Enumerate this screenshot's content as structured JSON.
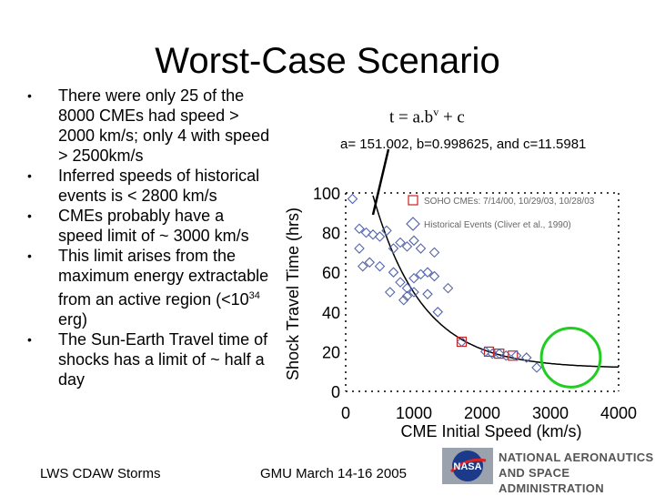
{
  "slide": {
    "title": "Worst-Case Scenario",
    "bullets": [
      "There were only 25 of the 8000 CMEs had speed > 2000 km/s; only 4 with  speed > 2500km/s",
      "Inferred speeds of historical events is < 2800 km/s",
      "CMEs probably have a speed limit of ~ 3000 km/s",
      "This limit arises from the maximum energy extractable from an active region (<10",
      "The Sun-Earth Travel time of shocks has a limit of ~ half a day"
    ],
    "bullet4_sup": "34",
    "bullet4_tail": " erg)",
    "formula_lhs": "t = a.b",
    "formula_sup": "v",
    "formula_rhs": " + c",
    "params": "a= 151.002, b=0.998625, and c=11.5981",
    "footer_left": "LWS CDAW Storms",
    "footer_center": "GMU March 14-16 2005",
    "logo_line1": "NATIONAL AERONAUTICS",
    "logo_line2": "AND SPACE ADMINISTRATION"
  },
  "chart_data": {
    "type": "scatter",
    "title": "",
    "xlabel": "CME Initial Speed (km/s)",
    "ylabel": "Shock Travel Time (hrs)",
    "xlim": [
      0,
      4000
    ],
    "ylim": [
      0,
      100
    ],
    "xticks": [
      0,
      1000,
      2000,
      3000,
      4000
    ],
    "yticks": [
      0,
      20,
      40,
      60,
      80,
      100
    ],
    "legend": [
      {
        "marker": "square",
        "color": "#cc2222",
        "label": "SOHO CMEs: 7/14/00, 10/29/03, 10/28/03"
      },
      {
        "marker": "diamond",
        "color": "#5566aa",
        "label": "Historical Events (Cliver et al., 1990)"
      }
    ],
    "series": [
      {
        "name": "SOHO CMEs",
        "marker": "square",
        "color": "#cc2222",
        "points": [
          [
            1700,
            25
          ],
          [
            2100,
            20
          ],
          [
            2250,
            19
          ],
          [
            2450,
            18
          ]
        ]
      },
      {
        "name": "Historical Events",
        "marker": "diamond",
        "color": "#5566aa",
        "points": [
          [
            100,
            97
          ],
          [
            300,
            80
          ],
          [
            400,
            79
          ],
          [
            500,
            78
          ],
          [
            600,
            81
          ],
          [
            700,
            72
          ],
          [
            800,
            75
          ],
          [
            900,
            73
          ],
          [
            1000,
            76
          ],
          [
            1100,
            72
          ],
          [
            1300,
            70
          ],
          [
            200,
            72
          ],
          [
            350,
            65
          ],
          [
            500,
            63
          ],
          [
            700,
            60
          ],
          [
            800,
            55
          ],
          [
            900,
            52
          ],
          [
            1000,
            57
          ],
          [
            1100,
            59
          ],
          [
            1200,
            60
          ],
          [
            1300,
            58
          ],
          [
            1500,
            52
          ],
          [
            900,
            48
          ],
          [
            1000,
            50
          ],
          [
            1200,
            49
          ],
          [
            1350,
            40
          ],
          [
            650,
            50
          ],
          [
            850,
            46
          ],
          [
            1700,
            25
          ],
          [
            2050,
            20
          ],
          [
            2150,
            19
          ],
          [
            2250,
            19
          ],
          [
            2350,
            18
          ],
          [
            2500,
            18
          ],
          [
            2650,
            17
          ],
          [
            2800,
            12
          ],
          [
            200,
            82
          ],
          [
            250,
            63
          ]
        ]
      }
    ],
    "fit": {
      "a": 151.002,
      "b": 0.998625,
      "c": 11.5981
    },
    "highlight": {
      "shape": "circle",
      "color": "#22cc22",
      "center": [
        3300,
        17
      ],
      "radius": 900
    }
  }
}
